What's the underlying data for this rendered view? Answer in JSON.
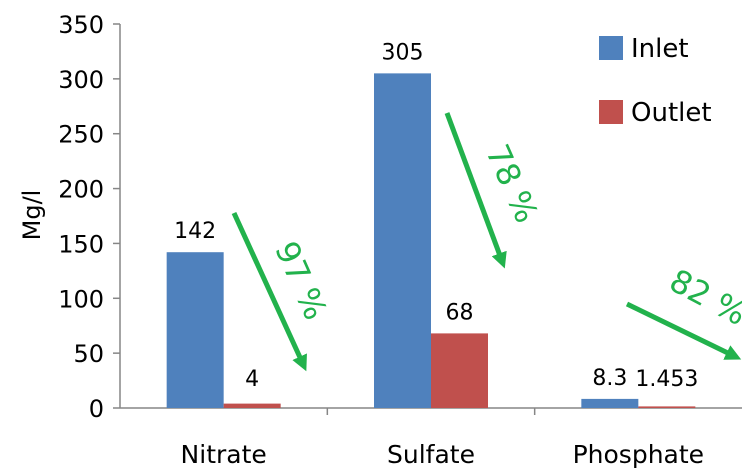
{
  "chart_data": {
    "type": "bar",
    "categories": [
      "Nitrate",
      "Sulfate",
      "Phosphate"
    ],
    "series": [
      {
        "name": "Inlet",
        "color": "#4f81bd",
        "values": [
          142,
          305,
          8.3
        ],
        "labels": [
          "142",
          "305",
          "8.3"
        ]
      },
      {
        "name": "Outlet",
        "color": "#c0504d",
        "values": [
          4,
          68,
          1.453
        ],
        "labels": [
          "4",
          "68",
          "1.453"
        ]
      }
    ],
    "ylabel": "Mg/l",
    "ylim": [
      0,
      350
    ],
    "yticks": [
      0,
      50,
      100,
      150,
      200,
      250,
      300,
      350
    ],
    "grid": false,
    "legend_position": "top-right",
    "annotations": [
      {
        "text": "97 %",
        "category": "Nitrate",
        "color": "#22b24c"
      },
      {
        "text": "78 %",
        "category": "Sulfate",
        "color": "#22b24c"
      },
      {
        "text": "82 %",
        "category": "Phosphate",
        "color": "#22b24c"
      }
    ]
  }
}
